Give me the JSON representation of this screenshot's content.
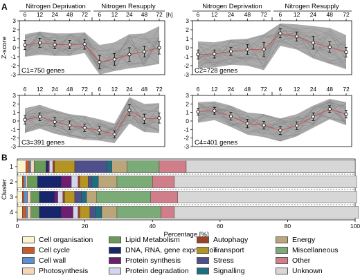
{
  "panel_a_label": "A",
  "panel_b_label": "B",
  "time_unit": "[h]",
  "phase_left": "Nitrogen Deprivation",
  "phase_right": "Nitrogen Resupply",
  "time_ticks": [
    "6",
    "12",
    "24",
    "48",
    "72",
    "6",
    "12",
    "24",
    "48",
    "72"
  ],
  "colors": {
    "band": "#9c9c9c",
    "trace": "#7e7e7e",
    "mean": "#d24a4a"
  },
  "chart_data": [
    {
      "type": "line",
      "id": "C1",
      "cluster_label": "C1=750 genes",
      "ylabel": "Z-score",
      "y_ticks": [
        "3",
        "2",
        "1",
        "0",
        "-1",
        "-2",
        "-3"
      ],
      "ylim": [
        -3,
        3
      ],
      "x": [
        "6",
        "12",
        "24",
        "48",
        "72",
        "6",
        "12",
        "24",
        "48",
        "72"
      ],
      "mean": [
        0.3,
        0.55,
        0.35,
        0.35,
        0.4,
        -1.6,
        -1.3,
        -0.75,
        -0.45,
        0.0
      ],
      "sd": [
        0.5,
        0.5,
        0.45,
        0.45,
        0.55,
        0.75,
        0.65,
        0.75,
        0.6,
        0.7
      ],
      "band_upper": [
        1.5,
        1.8,
        1.6,
        1.6,
        1.7,
        0.3,
        0.6,
        1.5,
        1.6,
        2.4
      ],
      "band_lower": [
        -1.0,
        -0.8,
        -0.9,
        -0.9,
        -0.6,
        -3.0,
        -2.6,
        -2.3,
        -2.1,
        -1.8
      ]
    },
    {
      "type": "line",
      "id": "C2",
      "cluster_label": "C2=728 genes",
      "ylabel": "",
      "y_ticks": [
        "3",
        "2",
        "1",
        "0",
        "-1",
        "-2",
        "-3"
      ],
      "ylim": [
        -3,
        3
      ],
      "x": [
        "6",
        "12",
        "24",
        "48",
        "72",
        "6",
        "12",
        "24",
        "48",
        "72"
      ],
      "mean": [
        -0.75,
        -0.7,
        -0.4,
        -0.2,
        -0.2,
        1.6,
        1.25,
        0.55,
        0.05,
        -0.5
      ],
      "sd": [
        0.5,
        0.45,
        0.45,
        0.55,
        0.8,
        0.5,
        0.5,
        0.7,
        0.6,
        0.55
      ],
      "band_upper": [
        0.7,
        0.6,
        0.9,
        1.0,
        1.5,
        2.7,
        2.6,
        2.4,
        2.2,
        1.4
      ],
      "band_lower": [
        -2.3,
        -2.2,
        -1.9,
        -2.0,
        -2.5,
        0.2,
        -0.2,
        -1.2,
        -1.8,
        -2.4
      ]
    },
    {
      "type": "line",
      "id": "C3",
      "cluster_label": "C3=391 genes",
      "ylabel": "",
      "y_ticks": [
        "3",
        "2",
        "1",
        "0",
        "-1",
        "-2",
        "-3"
      ],
      "ylim": [
        -3,
        3
      ],
      "x": [
        "6",
        "12",
        "24",
        "48",
        "72",
        "6",
        "12",
        "24",
        "48",
        "72"
      ],
      "mean": [
        0.15,
        0.5,
        -0.1,
        -0.5,
        -0.8,
        -1.1,
        -1.55,
        1.25,
        0.25,
        0.35
      ],
      "sd": [
        0.5,
        0.45,
        0.5,
        0.5,
        0.45,
        0.45,
        0.4,
        0.65,
        0.55,
        0.6
      ],
      "band_upper": [
        1.5,
        1.9,
        1.3,
        0.8,
        0.6,
        0.2,
        -0.3,
        2.8,
        2.0,
        2.1
      ],
      "band_lower": [
        -1.4,
        -0.9,
        -1.5,
        -1.9,
        -2.2,
        -2.3,
        -2.6,
        -0.3,
        -1.3,
        -1.4
      ]
    },
    {
      "type": "line",
      "id": "C4",
      "cluster_label": "C4=401 genes",
      "ylabel": "",
      "y_ticks": [
        "3",
        "2",
        "1",
        "0",
        "-1",
        "-2",
        "-3"
      ],
      "ylim": [
        -3,
        3
      ],
      "x": [
        "6",
        "12",
        "24",
        "48",
        "72",
        "6",
        "12",
        "24",
        "48",
        "72"
      ],
      "mean": [
        1.1,
        1.2,
        0.55,
        -0.3,
        -0.5,
        -1.1,
        -0.55,
        0.5,
        1.4,
        0.8
      ],
      "sd": [
        0.4,
        0.4,
        0.45,
        0.5,
        0.45,
        0.5,
        0.45,
        0.45,
        0.4,
        0.45
      ],
      "band_upper": [
        2.2,
        2.3,
        1.8,
        1.0,
        0.8,
        0.3,
        0.8,
        1.8,
        2.6,
        2.2
      ],
      "band_lower": [
        -0.2,
        0.1,
        -0.7,
        -1.6,
        -1.9,
        -2.4,
        -1.8,
        -0.8,
        0.2,
        -0.5
      ]
    },
    {
      "type": "bar",
      "stacked": true,
      "orientation": "horizontal",
      "xlabel": "Percentage [%]",
      "ylabel": "Cluster",
      "xlim": [
        0,
        100
      ],
      "x_ticks": [
        "0",
        "20",
        "40",
        "60",
        "80",
        "100"
      ],
      "categories": [
        "1",
        "2",
        "3",
        "4"
      ],
      "series": [
        {
          "name": "Cell organisation",
          "color": "#fbf5cf",
          "values": [
            2.5,
            1.5,
            1.5,
            1.5
          ]
        },
        {
          "name": "Cell cycle",
          "color": "#cc5a28",
          "values": [
            1.0,
            0.5,
            0.5,
            1.0
          ]
        },
        {
          "name": "Cell wall",
          "color": "#5b8fce",
          "values": [
            0.5,
            0.5,
            1.0,
            0.5
          ]
        },
        {
          "name": "Photosynthesis",
          "color": "#f7d5b8",
          "values": [
            1.0,
            0.5,
            1.0,
            1.0
          ]
        },
        {
          "name": "Lipid Metabolism",
          "color": "#6a9a5a",
          "values": [
            3.5,
            3.0,
            2.5,
            2.5
          ]
        },
        {
          "name": "DNA, RNA, gene expression",
          "color": "#17266c",
          "values": [
            0.5,
            7.0,
            4.5,
            6.5
          ]
        },
        {
          "name": "Protein synthesis",
          "color": "#6e1e6e",
          "values": [
            0.5,
            3.0,
            1.0,
            3.5
          ]
        },
        {
          "name": "Protein degradation",
          "color": "#d2d6ee",
          "values": [
            1.0,
            2.0,
            1.5,
            1.5
          ]
        },
        {
          "name": "Autophagy",
          "color": "#9b4223",
          "values": [
            0.5,
            0.5,
            0.5,
            0.5
          ]
        },
        {
          "name": "Transport",
          "color": "#b69422",
          "values": [
            6.0,
            2.5,
            3.0,
            3.0
          ]
        },
        {
          "name": "Stress",
          "color": "#4f4f8b",
          "values": [
            9.5,
            1.0,
            2.0,
            1.5
          ]
        },
        {
          "name": "Signalling",
          "color": "#1f6e80",
          "values": [
            1.5,
            2.0,
            1.5,
            2.0
          ]
        },
        {
          "name": "Energy",
          "color": "#bba67a",
          "values": [
            4.5,
            5.5,
            3.0,
            4.5
          ]
        },
        {
          "name": "Miscellaneous",
          "color": "#7bab76",
          "values": [
            9.5,
            10.5,
            16.0,
            13.0
          ]
        },
        {
          "name": "Other",
          "color": "#cf7e8a",
          "values": [
            8.0,
            6.5,
            8.0,
            4.0
          ]
        },
        {
          "name": "Unknown",
          "color": "#d7d7d7",
          "values": [
            50.0,
            54.0,
            53.0,
            54.5
          ]
        }
      ]
    }
  ],
  "legend_items": [
    "Cell organisation",
    "Cell cycle",
    "Cell wall",
    "Photosynthesis",
    "Lipid Metabolism",
    "DNA, RNA, gene expression",
    "Protein synthesis",
    "Protein degradation",
    "Autophagy",
    "Transport",
    "Stress",
    "Signalling",
    "Energy",
    "Miscellaneous",
    "Other",
    "Unknown"
  ]
}
